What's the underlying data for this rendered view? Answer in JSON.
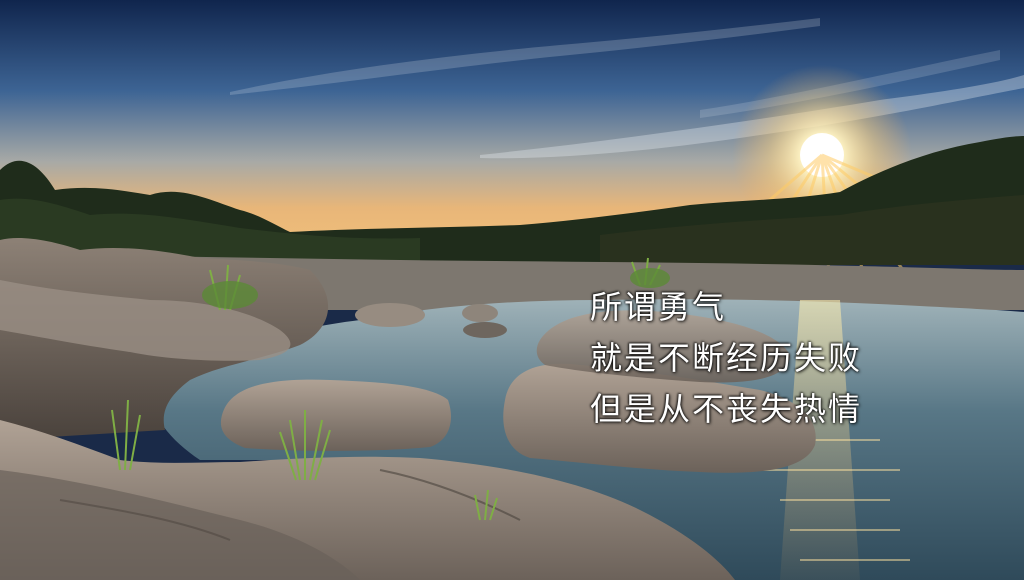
{
  "image": {
    "description_colors": {
      "sky_top": "#1d3a6b",
      "sky_mid": "#5a7ea8",
      "horizon_glow": "#f3c27a",
      "sun": "#fff6d6",
      "water": "#4d6e80",
      "rock": "#8c8279",
      "treeline": "#1f2a1a"
    }
  },
  "caption": {
    "line1": "所谓勇气",
    "line2": "就是不断经历失败",
    "line3": "但是从不丧失热情"
  }
}
